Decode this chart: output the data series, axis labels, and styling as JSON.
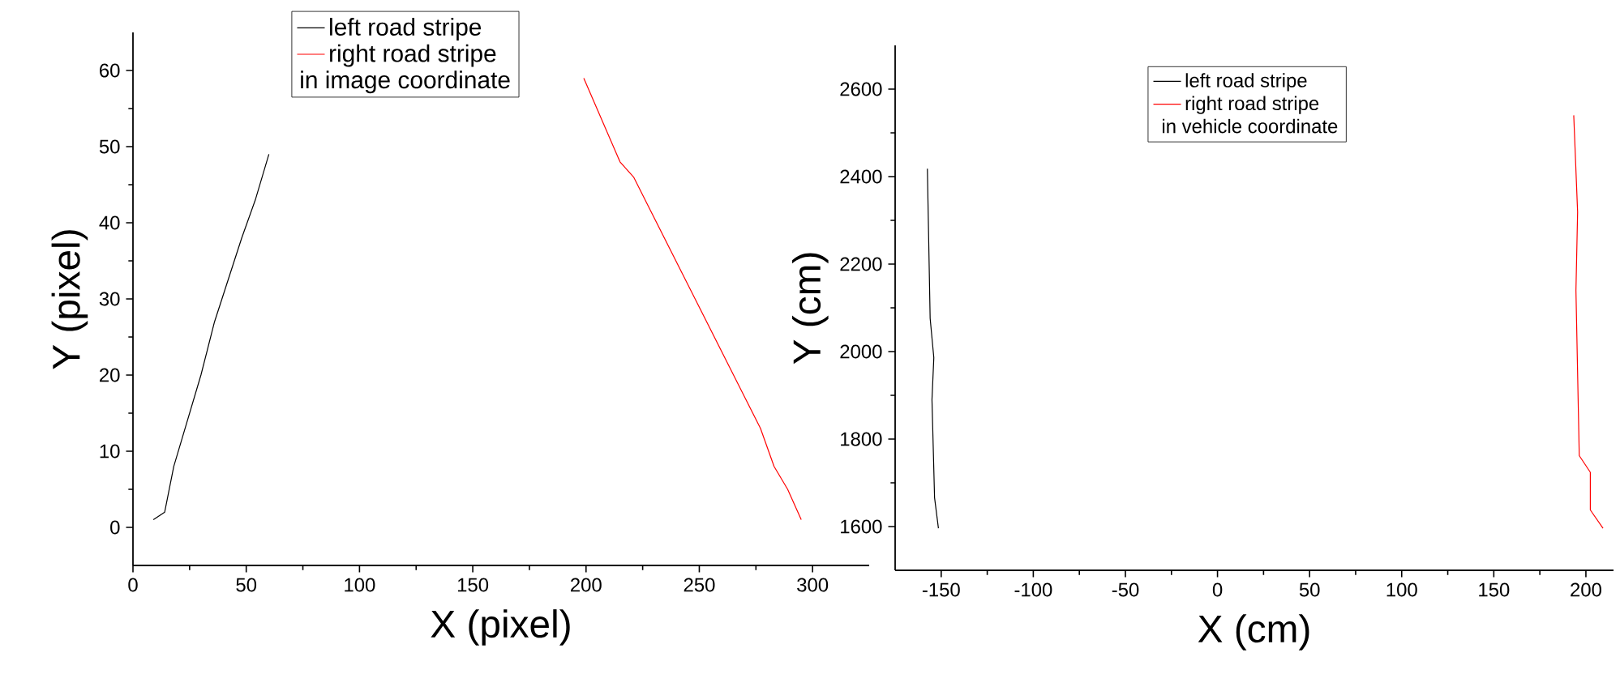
{
  "chart_data": [
    {
      "type": "line",
      "xlabel": "X (pixel)",
      "ylabel": "Y (pixel)",
      "xlim": [
        0,
        325
      ],
      "ylim": [
        -5,
        65
      ],
      "xticks": [
        0,
        50,
        100,
        150,
        200,
        250,
        300
      ],
      "yticks": [
        0,
        10,
        20,
        30,
        40,
        50,
        60
      ],
      "legend": "top",
      "annotations": [
        "in image coordinate"
      ],
      "grid": false,
      "series": [
        {
          "name": "left road stripe",
          "color": "#000000",
          "x": [
            9,
            14,
            18,
            30,
            36,
            48,
            54,
            60
          ],
          "values": [
            1,
            2,
            8,
            20,
            27,
            38,
            43,
            49
          ]
        },
        {
          "name": "right road stripe",
          "color": "#ff0000",
          "x": [
            199,
            215,
            221,
            277,
            283,
            289,
            295
          ],
          "values": [
            59,
            48,
            46,
            13,
            8,
            5,
            1
          ]
        }
      ]
    },
    {
      "type": "line",
      "xlabel": "X (cm)",
      "ylabel": "Y (cm)",
      "xlim": [
        -175,
        215
      ],
      "ylim": [
        1500,
        2700
      ],
      "xticks": [
        -150,
        -100,
        -50,
        0,
        50,
        100,
        150,
        200
      ],
      "yticks": [
        1600,
        1800,
        2000,
        2200,
        2400,
        2600
      ],
      "legend": "top",
      "annotations": [
        "in vehicle coordinate"
      ],
      "grid": false,
      "series": [
        {
          "name": "left road stripe",
          "color": "#000000",
          "x": [
            -157.5,
            -156,
            -154,
            -155,
            -153.6,
            -151.5
          ],
          "values": [
            2418,
            2076,
            1986,
            1890,
            1666,
            1596
          ]
        },
        {
          "name": "right road stripe",
          "color": "#ff0000",
          "x": [
            193.4,
            195.5,
            194.6,
            196.4,
            202.4,
            202.4,
            209.3
          ],
          "values": [
            2540,
            2319,
            2140,
            1762,
            1724,
            1638,
            1596
          ]
        }
      ]
    }
  ]
}
